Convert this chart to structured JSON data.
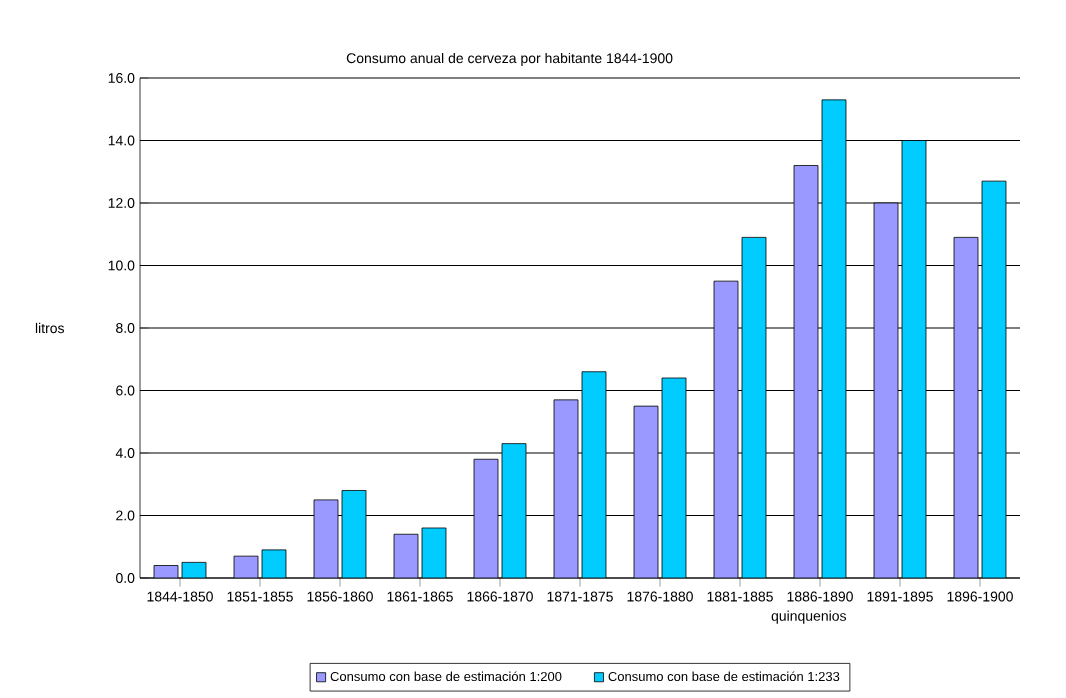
{
  "chart_data": {
    "type": "bar",
    "title": "Consumo anual de cerveza por habitante 1844-1900",
    "xlabel": "quinquenios",
    "ylabel": "litros",
    "categories": [
      "1844-1850",
      "1851-1855",
      "1856-1860",
      "1861-1865",
      "1866-1870",
      "1871-1875",
      "1876-1880",
      "1881-1885",
      "1886-1890",
      "1891-1895",
      "1896-1900"
    ],
    "series": [
      {
        "name": "Consumo con base de estimación 1:200",
        "color": "#9999ff",
        "values": [
          0.4,
          0.7,
          2.5,
          1.4,
          3.8,
          5.7,
          5.5,
          9.5,
          13.2,
          12.0,
          10.9
        ]
      },
      {
        "name": "Consumo con base de estimación 1:233",
        "color": "#00ccff",
        "values": [
          0.5,
          0.9,
          2.8,
          1.6,
          4.3,
          6.6,
          6.4,
          10.9,
          15.3,
          14.0,
          12.7
        ]
      }
    ],
    "ylim": [
      0,
      16
    ],
    "yticks": [
      {
        "value": 0,
        "label": "0.0"
      },
      {
        "value": 2,
        "label": "2.0"
      },
      {
        "value": 4,
        "label": "4.0"
      },
      {
        "value": 6,
        "label": "6.0"
      },
      {
        "value": 8,
        "label": "8.0"
      },
      {
        "value": 10,
        "label": "10.0"
      },
      {
        "value": 12,
        "label": "12.0"
      },
      {
        "value": 14,
        "label": "14.0"
      },
      {
        "value": 16,
        "label": "16.0"
      }
    ],
    "grid": "y",
    "legend": "bottom"
  }
}
